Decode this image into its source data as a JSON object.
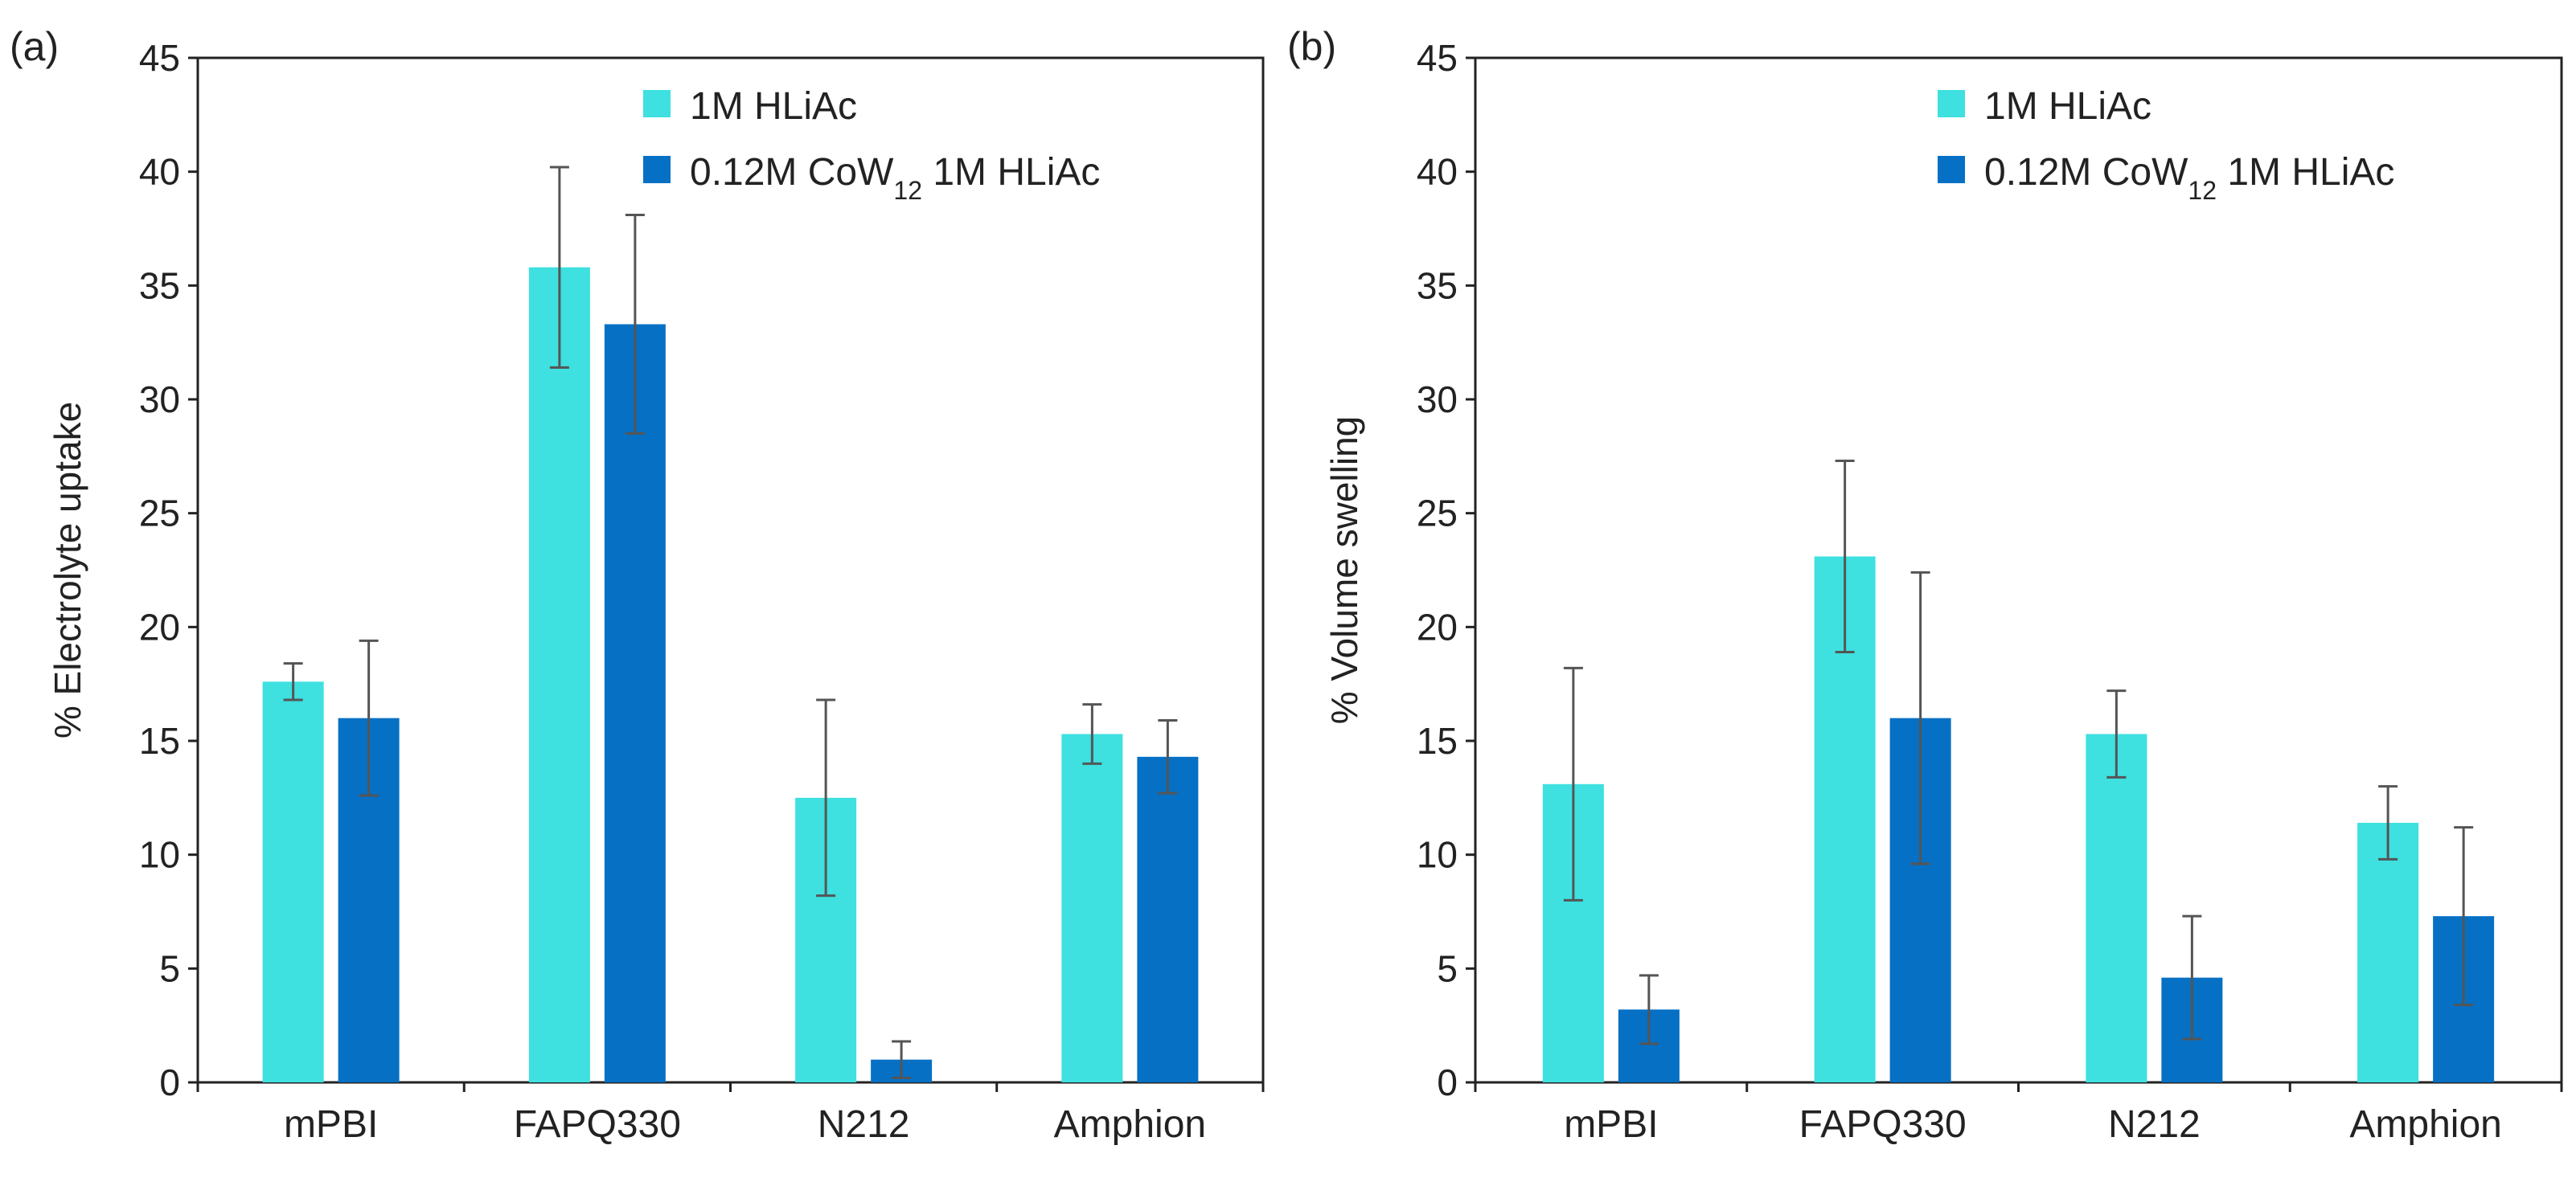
{
  "colors": {
    "series1": "#3ee0e0",
    "series2": "#0670c4",
    "error": "#555555",
    "axis": "#222222"
  },
  "chart_data": [
    {
      "type": "bar",
      "panel_label": "(a)",
      "ylabel": "% Electrolyte uptake",
      "ylim": [
        0,
        45
      ],
      "yticks": [
        "0",
        "5",
        "10",
        "15",
        "20",
        "25",
        "30",
        "35",
        "40",
        "45"
      ],
      "categories": [
        "mPBI",
        "FAPQ330",
        "N212",
        "Amphion"
      ],
      "legend_position": "top-center",
      "series": [
        {
          "name": "1M HLiAc",
          "legend_parts": [
            "1M HLiAc"
          ],
          "color": "#3ee0e0",
          "values": [
            17.6,
            35.8,
            12.5,
            15.3
          ],
          "errors": [
            0.8,
            4.4,
            4.3,
            1.3
          ]
        },
        {
          "name": "0.12M CoW12 1M HLiAc",
          "legend_parts": [
            "0.12M CoW",
            "12",
            " 1M HLiAc"
          ],
          "color": "#0670c4",
          "values": [
            16.0,
            33.3,
            1.0,
            14.3
          ],
          "errors": [
            3.4,
            4.8,
            0.8,
            1.6
          ]
        }
      ]
    },
    {
      "type": "bar",
      "panel_label": "(b)",
      "ylabel": "% Volume swelling",
      "ylim": [
        0,
        45
      ],
      "yticks": [
        "0",
        "5",
        "10",
        "15",
        "20",
        "25",
        "30",
        "35",
        "40",
        "45"
      ],
      "categories": [
        "mPBI",
        "FAPQ330",
        "N212",
        "Amphion"
      ],
      "legend_position": "top-center",
      "series": [
        {
          "name": "1M HLiAc",
          "legend_parts": [
            "1M HLiAc"
          ],
          "color": "#3ee0e0",
          "values": [
            13.1,
            23.1,
            15.3,
            11.4
          ],
          "errors": [
            5.1,
            4.2,
            1.9,
            1.6
          ]
        },
        {
          "name": "0.12M CoW12 1M HLiAc",
          "legend_parts": [
            "0.12M CoW",
            "12",
            " 1M HLiAc"
          ],
          "color": "#0670c4",
          "values": [
            3.2,
            16.0,
            4.6,
            7.3
          ],
          "errors": [
            1.5,
            6.4,
            2.7,
            3.9
          ]
        }
      ]
    }
  ]
}
